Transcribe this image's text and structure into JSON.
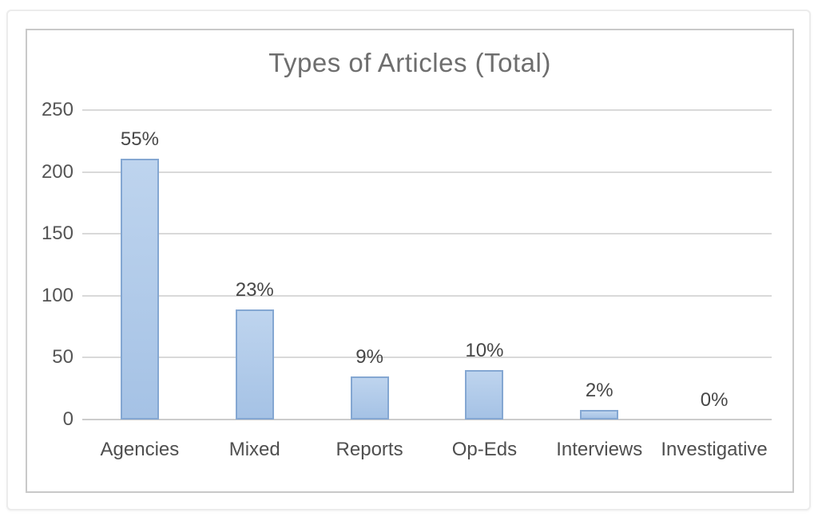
{
  "chart_data": {
    "type": "bar",
    "title": "Types of Articles (Total)",
    "categories": [
      "Agencies",
      "Mixed",
      "Reports",
      "Op-Eds",
      "Interviews",
      "Investigative"
    ],
    "values": [
      211,
      89,
      35,
      40,
      8,
      0
    ],
    "data_labels": [
      "55%",
      "23%",
      "9%",
      "10%",
      "2%",
      "0%"
    ],
    "xlabel": "",
    "ylabel": "",
    "ylim": [
      0,
      250
    ],
    "y_ticks": [
      0,
      50,
      100,
      150,
      200,
      250
    ],
    "grid": true,
    "legend": "none",
    "colors": {
      "bar_fill_top": "#bed4ee",
      "bar_fill_bottom": "#a5c2e5",
      "bar_border": "#84a7d2",
      "gridline": "#d9d9d9",
      "title_text": "#6e6e6e",
      "tick_text": "#555555",
      "data_label_text": "#474747",
      "category_text": "#4f4f4f",
      "frame_border": "#c9c9c9",
      "card_border": "#ececec"
    }
  }
}
